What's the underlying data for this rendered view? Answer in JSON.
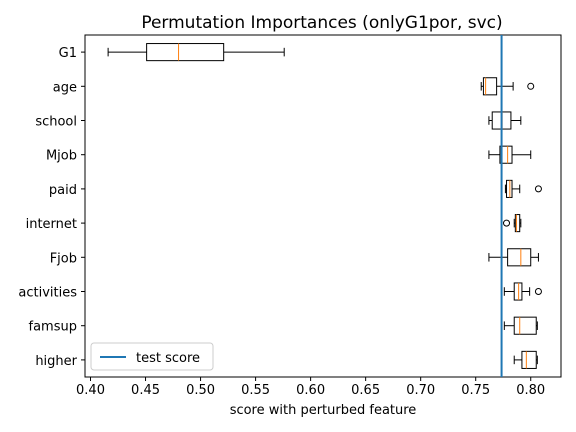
{
  "chart_data": {
    "type": "box",
    "title": "Permutation Importances (onlyG1por, svc)",
    "xlabel": "score with perturbed feature",
    "ylabel": "",
    "xlim": [
      0.395,
      0.8275
    ],
    "xticks": [
      0.4,
      0.45,
      0.5,
      0.55,
      0.6,
      0.65,
      0.7,
      0.75,
      0.8
    ],
    "xtick_labels": [
      "0.40",
      "0.45",
      "0.50",
      "0.55",
      "0.60",
      "0.65",
      "0.70",
      "0.75",
      "0.80"
    ],
    "categories": [
      "G1",
      "age",
      "school",
      "Mjob",
      "paid",
      "internet",
      "Fjob",
      "activities",
      "famsup",
      "higher"
    ],
    "boxes": [
      {
        "label": "G1",
        "whislo": 0.416,
        "q1": 0.451,
        "med": 0.48,
        "q3": 0.521,
        "whishi": 0.576,
        "fliers": []
      },
      {
        "label": "age",
        "whislo": 0.755,
        "q1": 0.757,
        "med": 0.759,
        "q3": 0.769,
        "whishi": 0.784,
        "fliers": [
          0.8
        ]
      },
      {
        "label": "school",
        "whislo": 0.762,
        "q1": 0.765,
        "med": 0.774,
        "q3": 0.782,
        "whishi": 0.791,
        "fliers": []
      },
      {
        "label": "Mjob",
        "whislo": 0.762,
        "q1": 0.772,
        "med": 0.779,
        "q3": 0.783,
        "whishi": 0.8,
        "fliers": []
      },
      {
        "label": "paid",
        "whislo": 0.777,
        "q1": 0.778,
        "med": 0.781,
        "q3": 0.783,
        "whishi": 0.79,
        "fliers": [
          0.807
        ]
      },
      {
        "label": "internet",
        "whislo": 0.785,
        "q1": 0.786,
        "med": 0.787,
        "q3": 0.79,
        "whishi": 0.791,
        "fliers": [
          0.778
        ]
      },
      {
        "label": "Fjob",
        "whislo": 0.762,
        "q1": 0.779,
        "med": 0.791,
        "q3": 0.8,
        "whishi": 0.807,
        "fliers": []
      },
      {
        "label": "activities",
        "whislo": 0.776,
        "q1": 0.785,
        "med": 0.789,
        "q3": 0.792,
        "whishi": 0.799,
        "fliers": [
          0.807
        ]
      },
      {
        "label": "famsup",
        "whislo": 0.776,
        "q1": 0.785,
        "med": 0.79,
        "q3": 0.805,
        "whishi": 0.806,
        "fliers": []
      },
      {
        "label": "higher",
        "whislo": 0.785,
        "q1": 0.792,
        "med": 0.796,
        "q3": 0.805,
        "whishi": 0.806,
        "fliers": []
      }
    ],
    "reference_line": {
      "label": "test score",
      "x": 0.7735
    },
    "legend": {
      "position": "lower-left",
      "entries": [
        "test score"
      ]
    },
    "colors": {
      "box": "#000000",
      "median": "#ff7f0e",
      "reference_line": "#1f77b4",
      "background": "#ffffff"
    },
    "grid": false
  }
}
